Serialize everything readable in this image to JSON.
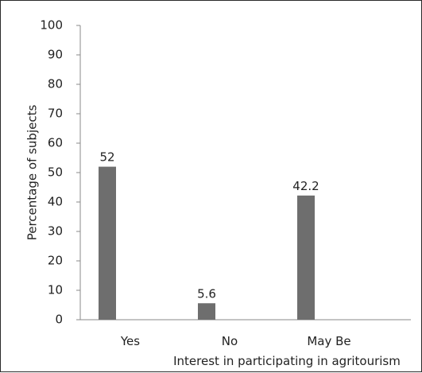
{
  "chart_data": {
    "type": "bar",
    "categories": [
      "Yes",
      "No",
      "May Be"
    ],
    "values": [
      52,
      5.6,
      42.2
    ],
    "data_labels": [
      "52",
      "5.6",
      "42.2"
    ],
    "title": "",
    "xlabel": "Interest in participating in agritourism",
    "ylabel": "Percentage of subjects",
    "ylim": [
      0,
      100
    ],
    "yticks": [
      0,
      10,
      20,
      30,
      40,
      50,
      60,
      70,
      80,
      90,
      100
    ],
    "grid": false,
    "legend": "none",
    "bar_color": "#6e6e6e"
  }
}
